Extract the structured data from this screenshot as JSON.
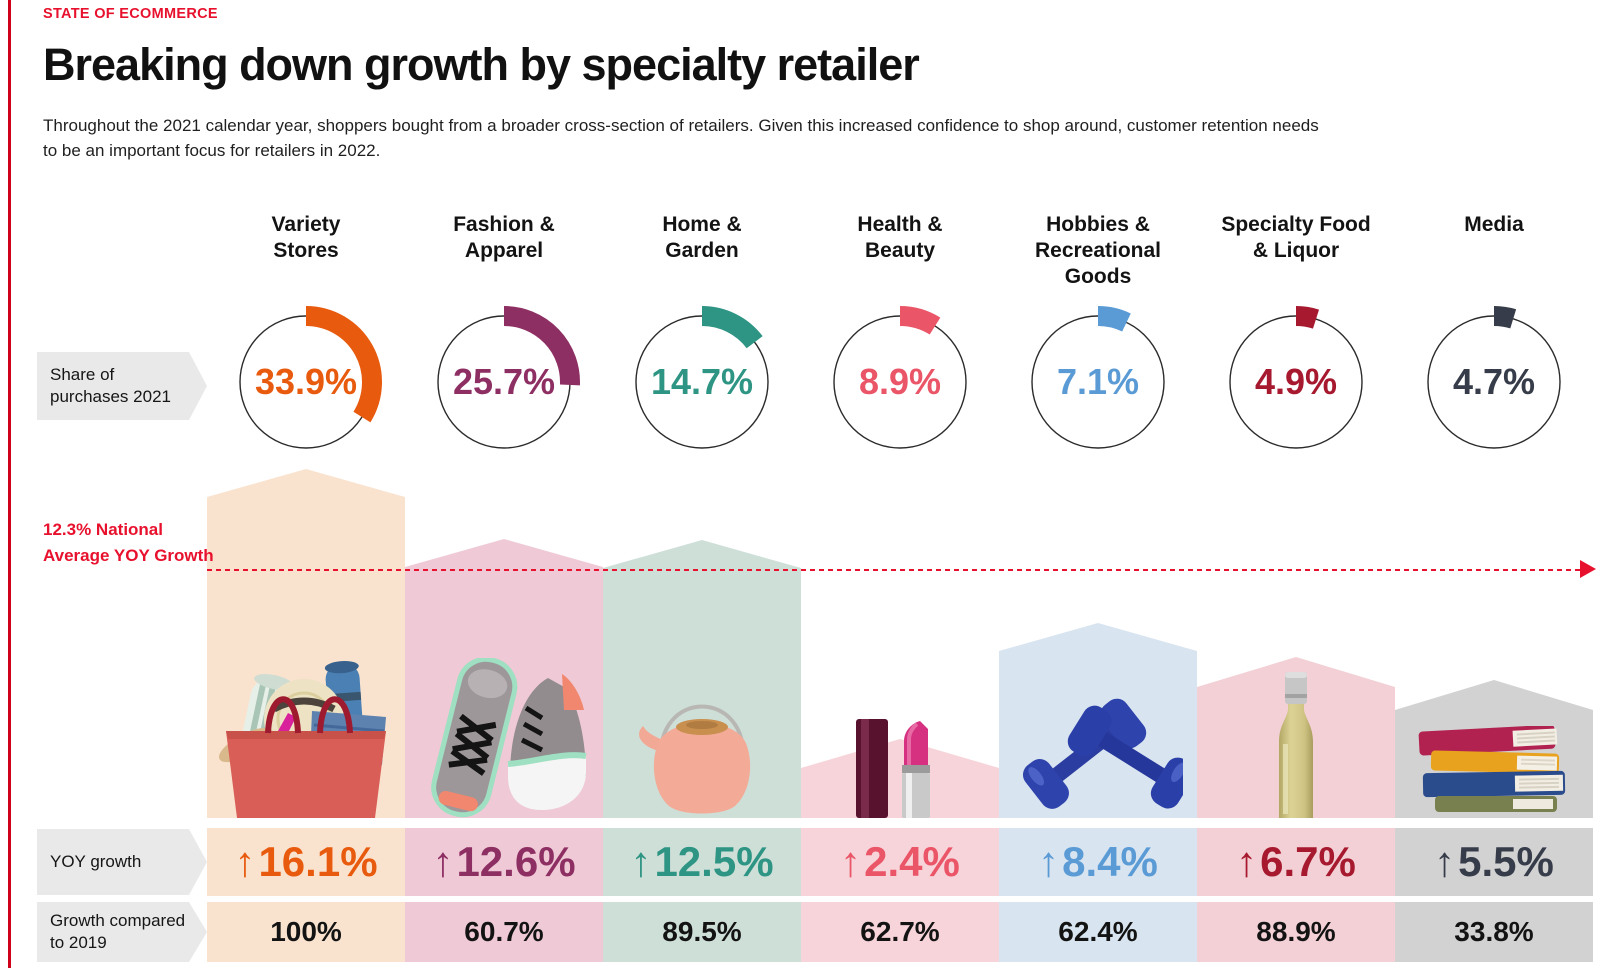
{
  "page": {
    "eyebrow": "STATE OF ECOMMERCE",
    "title": "Breaking down growth by specialty retailer",
    "subtitle": "Throughout the 2021 calendar year, shoppers bought from a broader cross-section of retailers. Given this increased confidence to shop around, customer retention needs\nto be an important focus for retailers in 2022."
  },
  "row_labels": {
    "share": "Share of\npurchases 2021",
    "yoy": "YOY growth",
    "growth2019": "Growth compared\nto 2019"
  },
  "average_line": {
    "label": "12.3% National\nAverage YOY Growth",
    "value_pct": 12.3,
    "color": "#E8112D"
  },
  "icons": {
    "up_arrow": "↑"
  },
  "categories": [
    {
      "name": "Variety Stores",
      "title": "Variety\nStores",
      "share_label": "33.9%",
      "share_pct": 33.9,
      "yoy_label": "16.1%",
      "yoy_pct": 16.1,
      "growth_2019_label": "100%",
      "growth_2019_pct": 100,
      "color": "#E85B0F",
      "tint": "#FAE3CE",
      "product_icon": "shopping-bag"
    },
    {
      "name": "Fashion & Apparel",
      "title": "Fashion &\nApparel",
      "share_label": "25.7%",
      "share_pct": 25.7,
      "yoy_label": "12.6%",
      "yoy_pct": 12.6,
      "growth_2019_label": "60.7%",
      "growth_2019_pct": 60.7,
      "color": "#8E2F63",
      "tint": "#EFCAD6",
      "product_icon": "sneakers"
    },
    {
      "name": "Home & Garden",
      "title": "Home &\nGarden",
      "share_label": "14.7%",
      "share_pct": 14.7,
      "yoy_label": "12.5%",
      "yoy_pct": 12.5,
      "growth_2019_label": "89.5%",
      "growth_2019_pct": 89.5,
      "color": "#2E9483",
      "tint": "#CEDFD8",
      "product_icon": "teapot"
    },
    {
      "name": "Health & Beauty",
      "title": "Health &\nBeauty",
      "share_label": "8.9%",
      "share_pct": 8.9,
      "yoy_label": "2.4%",
      "yoy_pct": 2.4,
      "growth_2019_label": "62.7%",
      "growth_2019_pct": 62.7,
      "color": "#EA5567",
      "tint": "#F7D4D9",
      "product_icon": "lipstick"
    },
    {
      "name": "Hobbies & Recreational Goods",
      "title": "Hobbies &\nRecreational\nGoods",
      "share_label": "7.1%",
      "share_pct": 7.1,
      "yoy_label": "8.4%",
      "yoy_pct": 8.4,
      "growth_2019_label": "62.4%",
      "growth_2019_pct": 62.4,
      "color": "#5B9BD5",
      "tint": "#D8E4F0",
      "product_icon": "dumbbells"
    },
    {
      "name": "Specialty Food & Liquor",
      "title": "Specialty Food\n& Liquor",
      "share_label": "4.9%",
      "share_pct": 4.9,
      "yoy_label": "6.7%",
      "yoy_pct": 6.7,
      "growth_2019_label": "88.9%",
      "growth_2019_pct": 88.9,
      "color": "#A6192E",
      "tint": "#F2D0D5",
      "product_icon": "wine-bottle"
    },
    {
      "name": "Media",
      "title": "Media",
      "share_label": "4.7%",
      "share_pct": 4.7,
      "yoy_label": "5.5%",
      "yoy_pct": 5.5,
      "growth_2019_label": "33.8%",
      "growth_2019_pct": 33.8,
      "color": "#363C49",
      "tint": "#D2D2D2",
      "product_icon": "book-stack"
    }
  ],
  "chart_data": {
    "type": "bar",
    "title": "Breaking down growth by specialty retailer",
    "categories": [
      "Variety Stores",
      "Fashion & Apparel",
      "Home & Garden",
      "Health & Beauty",
      "Hobbies & Recreational Goods",
      "Specialty Food & Liquor",
      "Media"
    ],
    "series": [
      {
        "name": "Share of purchases 2021 (%)",
        "values": [
          33.9,
          25.7,
          14.7,
          8.9,
          7.1,
          4.9,
          4.7
        ]
      },
      {
        "name": "YOY growth (%)",
        "values": [
          16.1,
          12.6,
          12.5,
          2.4,
          8.4,
          6.7,
          5.5
        ]
      },
      {
        "name": "Growth compared to 2019 (%)",
        "values": [
          100,
          60.7,
          89.5,
          62.7,
          62.4,
          88.9,
          33.8
        ]
      }
    ],
    "annotations": [
      {
        "label": "12.3% National Average YOY Growth",
        "value": 12.3,
        "style": "dashed-red-line-with-arrow"
      }
    ],
    "legend_position": "none",
    "grid": false
  }
}
